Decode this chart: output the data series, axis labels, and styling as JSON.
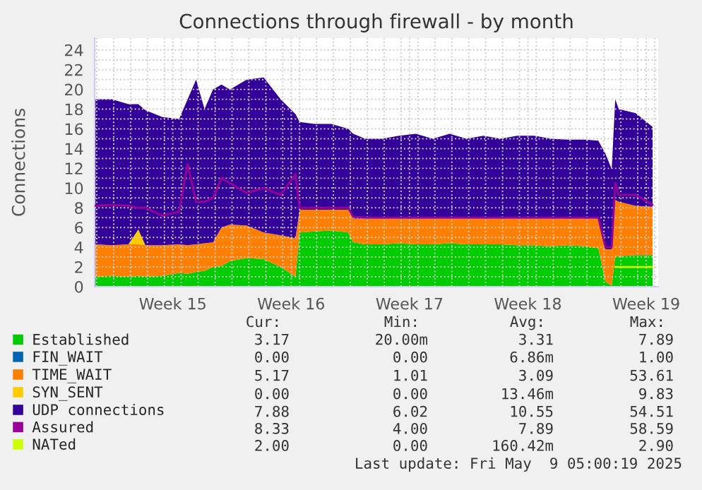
{
  "chart_data": {
    "type": "area",
    "title": "Connections through firewall - by month",
    "ylabel": "Connections",
    "stacked": true,
    "legend": "bottom",
    "grid": true,
    "x": [
      "2025-04-05T21:00",
      "2025-04-06T21:00",
      "2025-04-07T21:00",
      "2025-04-08T11:00",
      "2025-04-08T21:00",
      "2025-04-09T21:00",
      "2025-04-10T21:00",
      "2025-04-11T09:00",
      "2025-04-11T21:00",
      "2025-04-12T09:00",
      "2025-04-12T21:00",
      "2025-04-13T09:00",
      "2025-04-13T21:00",
      "2025-04-14T21:00",
      "2025-04-15T21:00",
      "2025-04-16T21:00",
      "2025-04-17T18:00",
      "2025-04-18T00:00",
      "2025-04-18T21:00",
      "2025-04-19T21:00",
      "2025-04-20T21:00",
      "2025-04-21T04:00",
      "2025-04-21T21:00",
      "2025-04-22T21:00",
      "2025-04-23T21:00",
      "2025-04-24T21:00",
      "2025-04-25T21:00",
      "2025-04-26T21:00",
      "2025-04-27T21:00",
      "2025-04-28T21:00",
      "2025-04-29T21:00",
      "2025-04-30T21:00",
      "2025-05-01T21:00",
      "2025-05-02T21:00",
      "2025-05-03T21:00",
      "2025-05-04T21:00",
      "2025-05-05T16:00",
      "2025-05-06T02:00",
      "2025-05-06T11:00",
      "2025-05-06T16:00",
      "2025-05-06T21:00",
      "2025-05-07T21:00",
      "2025-05-08T21:00"
    ],
    "xlim": [
      "2025-04-05T21:00",
      "2025-05-09T05:00"
    ],
    "xticks": [
      {
        "value": "2025-04-06",
        "label": null
      },
      {
        "value": "2025-04-07",
        "label": null
      },
      {
        "value": "2025-04-08",
        "label": null
      },
      {
        "value": "2025-04-09",
        "label": null
      },
      {
        "value": "2025-04-10",
        "label": null
      },
      {
        "value": "2025-04-10T12:00",
        "label": "Week 15"
      },
      {
        "value": "2025-04-11",
        "label": null
      },
      {
        "value": "2025-04-12",
        "label": null
      },
      {
        "value": "2025-04-13",
        "label": null
      },
      {
        "value": "2025-04-14",
        "label": null
      },
      {
        "value": "2025-04-15",
        "label": null
      },
      {
        "value": "2025-04-16",
        "label": null
      },
      {
        "value": "2025-04-17",
        "label": null
      },
      {
        "value": "2025-04-17T12:00",
        "label": "Week 16"
      },
      {
        "value": "2025-04-18",
        "label": null
      },
      {
        "value": "2025-04-19",
        "label": null
      },
      {
        "value": "2025-04-20",
        "label": null
      },
      {
        "value": "2025-04-21",
        "label": null
      },
      {
        "value": "2025-04-22",
        "label": null
      },
      {
        "value": "2025-04-23",
        "label": null
      },
      {
        "value": "2025-04-24",
        "label": null
      },
      {
        "value": "2025-04-24T12:00",
        "label": "Week 17"
      },
      {
        "value": "2025-04-25",
        "label": null
      },
      {
        "value": "2025-04-26",
        "label": null
      },
      {
        "value": "2025-04-27",
        "label": null
      },
      {
        "value": "2025-04-28",
        "label": null
      },
      {
        "value": "2025-04-29",
        "label": null
      },
      {
        "value": "2025-04-30",
        "label": null
      },
      {
        "value": "2025-05-01",
        "label": null
      },
      {
        "value": "2025-05-01T12:00",
        "label": "Week 18"
      },
      {
        "value": "2025-05-02",
        "label": null
      },
      {
        "value": "2025-05-03",
        "label": null
      },
      {
        "value": "2025-05-04",
        "label": null
      },
      {
        "value": "2025-05-05",
        "label": null
      },
      {
        "value": "2025-05-06",
        "label": null
      },
      {
        "value": "2025-05-07",
        "label": null
      },
      {
        "value": "2025-05-08",
        "label": null
      },
      {
        "value": "2025-05-08T12:00",
        "label": "Week 19"
      },
      {
        "value": "2025-05-09",
        "label": null
      }
    ],
    "ylim": [
      0,
      25.2
    ],
    "yticks": [
      0,
      {
        "value": 1,
        "label": null
      },
      2,
      {
        "value": 3,
        "label": null
      },
      4,
      {
        "value": 5,
        "label": null
      },
      6,
      {
        "value": 7,
        "label": null
      },
      8,
      {
        "value": 9,
        "label": null
      },
      10,
      {
        "value": 11,
        "label": null
      },
      12,
      {
        "value": 13,
        "label": null
      },
      14,
      {
        "value": 15,
        "label": null
      },
      16,
      {
        "value": 17,
        "label": null
      },
      18,
      {
        "value": 19,
        "label": null
      },
      20,
      {
        "value": 21,
        "label": null
      },
      22,
      {
        "value": 23,
        "label": null
      },
      24
    ],
    "series": [
      {
        "name": "Established",
        "color": "#00cc00",
        "values": [
          1.0,
          1.1,
          1.0,
          1.1,
          1.0,
          1.1,
          1.4,
          1.3,
          1.5,
          1.6,
          2.0,
          2.1,
          2.6,
          2.9,
          2.8,
          2.0,
          1.0,
          5.5,
          5.6,
          5.7,
          5.5,
          4.5,
          4.3,
          4.3,
          4.4,
          4.3,
          4.3,
          4.4,
          4.3,
          4.3,
          4.3,
          4.2,
          4.2,
          4.1,
          4.2,
          4.1,
          3.9,
          0.5,
          0.1,
          3.1,
          3.1,
          3.2,
          3.2
        ]
      },
      {
        "name": "FIN_WAIT",
        "color": "#0066b3",
        "values": [
          null,
          null,
          null,
          null,
          null,
          null,
          null,
          null,
          null,
          null,
          null,
          null,
          null,
          null,
          null,
          null,
          null,
          null,
          null,
          null,
          null,
          null,
          null,
          null,
          null,
          null,
          null,
          null,
          null,
          null,
          null,
          null,
          null,
          null,
          null,
          null,
          null,
          null,
          null,
          null,
          null,
          null,
          null
        ]
      },
      {
        "name": "TIME_WAIT",
        "color": "#ff8000",
        "values": [
          3.3,
          3.1,
          3.3,
          3.2,
          3.2,
          3.1,
          2.9,
          2.9,
          2.8,
          2.8,
          2.5,
          3.9,
          3.7,
          3.3,
          2.7,
          3.2,
          3.9,
          2.3,
          2.2,
          2.1,
          2.3,
          2.4,
          2.6,
          2.6,
          2.5,
          2.6,
          2.6,
          2.5,
          2.6,
          2.6,
          2.6,
          2.7,
          2.7,
          2.8,
          2.7,
          2.8,
          3.0,
          3.3,
          3.7,
          5.7,
          5.5,
          5.0,
          4.9
        ]
      },
      {
        "name": "SYN_SENT",
        "color": "#ffcc00",
        "values": [
          0,
          0,
          0,
          1.5,
          0,
          0,
          0,
          0,
          0,
          0,
          0,
          0,
          0,
          0,
          0,
          0,
          0,
          0,
          0,
          0,
          0,
          0,
          0,
          0,
          0,
          0,
          0,
          0,
          0,
          0,
          0,
          0,
          0,
          0,
          0,
          0,
          0,
          0,
          0,
          0,
          0,
          0,
          0
        ]
      },
      {
        "name": "UDP connections",
        "color": "#330099",
        "values": [
          14.7,
          14.8,
          14.2,
          12.7,
          13.7,
          13.0,
          12.7,
          14.8,
          16.7,
          13.6,
          15.5,
          14.5,
          13.7,
          14.8,
          15.7,
          13.8,
          12.6,
          8.9,
          8.7,
          8.7,
          8.2,
          8.6,
          8.1,
          8.1,
          8.4,
          8.6,
          8.1,
          8.6,
          8.1,
          8.4,
          8.1,
          8.4,
          8.4,
          8.1,
          8.0,
          8.0,
          7.9,
          9.7,
          8.1,
          10.2,
          9.4,
          9.4,
          8.1
        ]
      },
      {
        "name": "Assured",
        "color": "#990099",
        "type": "line",
        "values": [
          8.2,
          8.3,
          8.2,
          8.0,
          8.0,
          7.2,
          7.6,
          12.4,
          8.6,
          8.6,
          9.0,
          11.0,
          10.5,
          9.5,
          10.0,
          9.3,
          11.4,
          8.0,
          8.0,
          8.0,
          8.0,
          7.1,
          7.0,
          7.0,
          7.0,
          7.0,
          7.0,
          7.0,
          7.0,
          7.0,
          7.0,
          7.0,
          7.0,
          7.0,
          7.0,
          7.0,
          7.0,
          4.0,
          4.0,
          10.5,
          9.3,
          9.3,
          8.3
        ]
      },
      {
        "name": "NATed",
        "color": "#ccff00",
        "type": "line",
        "values": [
          null,
          null,
          null,
          null,
          null,
          null,
          null,
          null,
          null,
          null,
          null,
          null,
          null,
          null,
          null,
          null,
          null,
          null,
          null,
          null,
          null,
          null,
          null,
          null,
          null,
          null,
          null,
          null,
          null,
          null,
          null,
          null,
          null,
          null,
          null,
          null,
          null,
          null,
          null,
          2.0,
          2.0,
          2.0,
          2.0
        ]
      }
    ],
    "annotations": [
      "Cur:",
      "Min:",
      "Avg:",
      "Max:",
      "3.17",
      "20.00m",
      "3.31",
      "7.89",
      "0.00",
      "0.00",
      "6.86m",
      "1.00",
      "5.17",
      "1.01",
      "3.09",
      "53.61",
      "0.00",
      "0.00",
      "13.46m",
      "9.83",
      "7.88",
      "6.02",
      "10.55",
      "54.51",
      "8.33",
      "4.00",
      "7.89",
      "58.59",
      "2.00",
      "0.00",
      "160.42m",
      "2.90",
      "Last update: Fri May  9 05:00:19 2025"
    ]
  }
}
